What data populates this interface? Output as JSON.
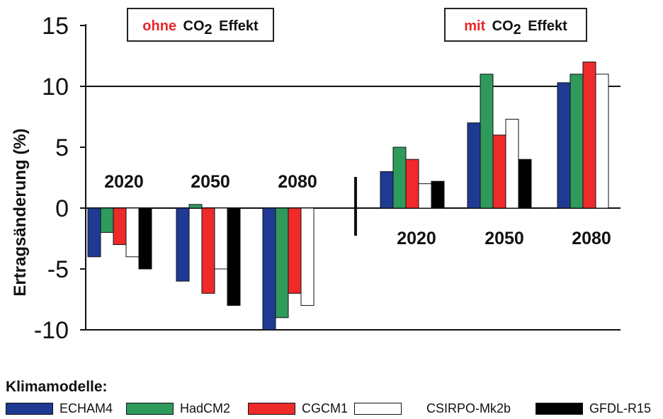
{
  "chart_data": {
    "type": "bar",
    "ylabel": "Ertragsänderung (%)",
    "ylim": [
      -10,
      15
    ],
    "yticks": [
      15,
      10,
      5,
      0,
      -5,
      -10
    ],
    "reference_line": 10,
    "models": [
      {
        "name": "ECHAM4",
        "color": "#1f3a93"
      },
      {
        "name": "HadCM2",
        "color": "#2e9a5c"
      },
      {
        "name": "CGCM1",
        "color": "#ee2a2a"
      },
      {
        "name": "CSIRPO-Mk2b",
        "color": "#ffffff"
      },
      {
        "name": "GFDL-R15",
        "color": "#000000"
      }
    ],
    "panels": [
      {
        "header_red": "ohne",
        "header_black": "Effekt",
        "groups": [
          {
            "label": "2020",
            "values": [
              -4,
              -2,
              -3,
              -4,
              -5
            ]
          },
          {
            "label": "2050",
            "values": [
              -6,
              0.3,
              -7,
              -5,
              -8
            ]
          },
          {
            "label": "2080",
            "values": [
              -10,
              -9,
              -7,
              -8,
              null
            ]
          }
        ]
      },
      {
        "header_red": "mit",
        "header_black": "Effekt",
        "groups": [
          {
            "label": "2020",
            "values": [
              3,
              5,
              4,
              2,
              2.2
            ]
          },
          {
            "label": "2050",
            "values": [
              7,
              11,
              6,
              7.3,
              4
            ]
          },
          {
            "label": "2080",
            "values": [
              10.3,
              11,
              12,
              11,
              null
            ]
          }
        ]
      }
    ],
    "legend_title": "Klimamodelle:"
  },
  "co2": {
    "main": "CO",
    "sub": "2"
  }
}
